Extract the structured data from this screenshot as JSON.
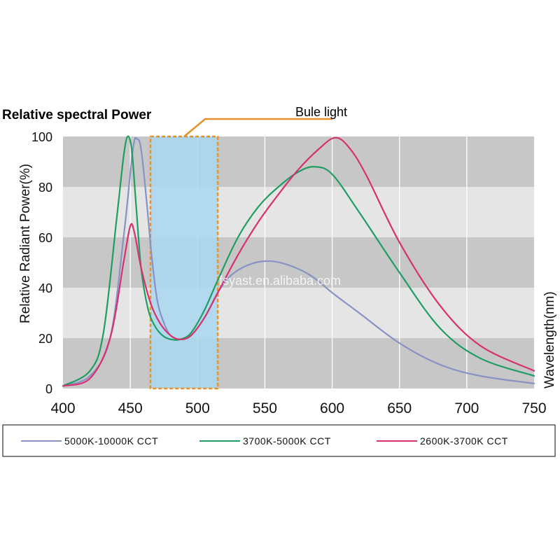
{
  "chart_data": {
    "type": "line",
    "title": "Relative spectral Power",
    "ylabel": "Relative Radiant Power(%)",
    "xlabel": "Wavelength(nm)",
    "xlim": [
      400,
      750
    ],
    "ylim": [
      0,
      100
    ],
    "x_ticks": [
      "400",
      "450",
      "500",
      "550",
      "600",
      "650",
      "700",
      "750"
    ],
    "y_ticks": [
      "0",
      "20",
      "40",
      "60",
      "80",
      "100"
    ],
    "grid": true,
    "legend_position": "bottom",
    "annotation": {
      "label": "Bule light",
      "range": [
        465,
        515
      ]
    },
    "watermark": "fsyast.en.alibaba.com",
    "series": [
      {
        "name": "5000K-10000K CCT",
        "color": "#8893c4",
        "x": [
          400,
          420,
          435,
          445,
          452,
          455,
          458,
          462,
          466,
          470,
          475,
          480,
          487,
          495,
          505,
          515,
          525,
          540,
          555,
          570,
          585,
          600,
          620,
          650,
          680,
          710,
          750
        ],
        "y": [
          1,
          5,
          20,
          60,
          95,
          99,
          95,
          75,
          52,
          35,
          26,
          21,
          19.5,
          21,
          28,
          38,
          45,
          49.5,
          50.5,
          48.5,
          44.5,
          38,
          30,
          18,
          9.5,
          5,
          2
        ]
      },
      {
        "name": "3700K-5000K CCT",
        "color": "#1f9e63",
        "x": [
          400,
          420,
          430,
          440,
          445,
          448,
          451,
          454,
          458,
          463,
          468,
          474,
          480,
          487,
          495,
          505,
          515,
          530,
          545,
          560,
          575,
          587,
          600,
          620,
          650,
          680,
          710,
          750
        ],
        "y": [
          1,
          7,
          22,
          68,
          92,
          100,
          95,
          75,
          48,
          32,
          25,
          21,
          19.5,
          19.5,
          22,
          31,
          43,
          60,
          72,
          80,
          86,
          88,
          85,
          70,
          46,
          24,
          12,
          5
        ]
      },
      {
        "name": "2600K-3700K CCT",
        "color": "#d6326f",
        "x": [
          400,
          420,
          435,
          445,
          450,
          453,
          458,
          465,
          472,
          480,
          487,
          495,
          505,
          515,
          530,
          545,
          560,
          575,
          590,
          602,
          612,
          625,
          650,
          680,
          710,
          750
        ],
        "y": [
          1,
          4,
          20,
          50,
          64.5,
          62,
          48,
          34,
          26,
          21,
          19.5,
          21,
          28,
          38,
          53,
          66,
          77,
          87,
          95,
          99.5,
          96,
          85,
          58,
          33,
          17,
          7
        ]
      }
    ]
  }
}
